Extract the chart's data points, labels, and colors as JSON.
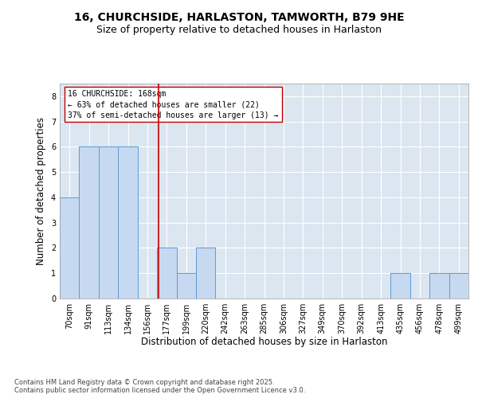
{
  "title_line1": "16, CHURCHSIDE, HARLASTON, TAMWORTH, B79 9HE",
  "title_line2": "Size of property relative to detached houses in Harlaston",
  "xlabel": "Distribution of detached houses by size in Harlaston",
  "ylabel": "Number of detached properties",
  "categories": [
    "70sqm",
    "91sqm",
    "113sqm",
    "134sqm",
    "156sqm",
    "177sqm",
    "199sqm",
    "220sqm",
    "242sqm",
    "263sqm",
    "285sqm",
    "306sqm",
    "327sqm",
    "349sqm",
    "370sqm",
    "392sqm",
    "413sqm",
    "435sqm",
    "456sqm",
    "478sqm",
    "499sqm"
  ],
  "values": [
    4,
    6,
    6,
    6,
    0,
    2,
    1,
    2,
    0,
    0,
    0,
    0,
    0,
    0,
    0,
    0,
    0,
    1,
    0,
    1,
    1
  ],
  "bar_color": "#c6d9f0",
  "bar_edge_color": "#5b9bd5",
  "subject_line_color": "#c00000",
  "annotation_text": "16 CHURCHSIDE: 168sqm\n← 63% of detached houses are smaller (22)\n37% of semi-detached houses are larger (13) →",
  "annotation_box_color": "#ffffff",
  "annotation_box_edge": "#c00000",
  "ylim_max": 8.5,
  "yticks": [
    0,
    1,
    2,
    3,
    4,
    5,
    6,
    7,
    8
  ],
  "plot_bg_color": "#dce6f1",
  "grid_color": "#ffffff",
  "footer_text": "Contains HM Land Registry data © Crown copyright and database right 2025.\nContains public sector information licensed under the Open Government Licence v3.0.",
  "title_fontsize": 10,
  "subtitle_fontsize": 9,
  "tick_fontsize": 7,
  "label_fontsize": 8.5,
  "annotation_fontsize": 7,
  "footer_fontsize": 6
}
